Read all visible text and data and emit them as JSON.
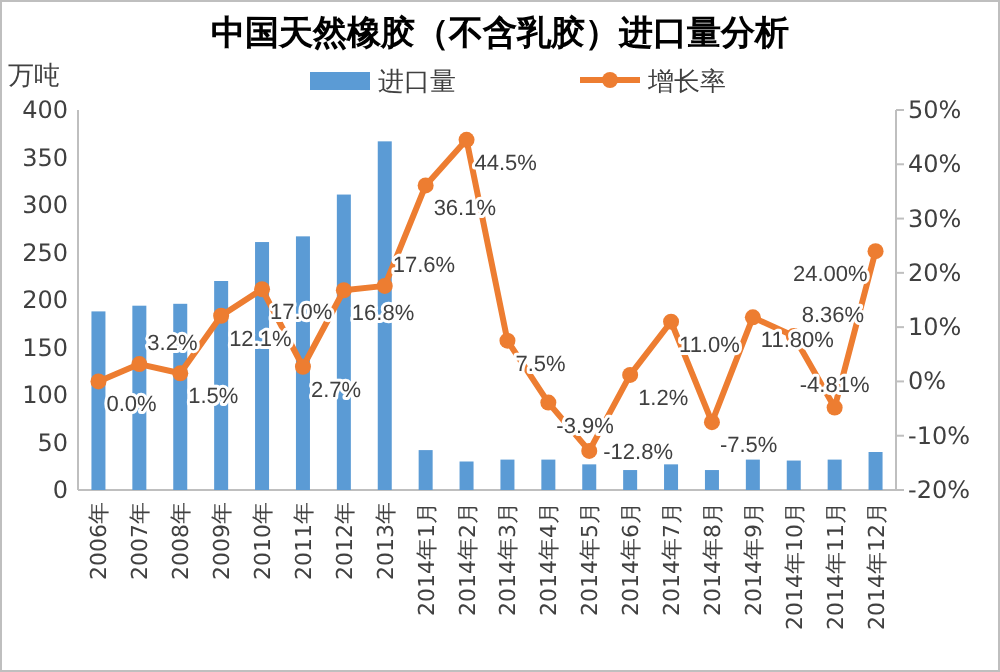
{
  "chart_data": {
    "type": "bar",
    "title": "中国天然橡胶（不含乳胶）进口量分析",
    "ylabel": "万吨",
    "legend": "top",
    "grid": false,
    "categories": [
      "2006年",
      "2007年",
      "2008年",
      "2009年",
      "2010年",
      "2011年",
      "2012年",
      "2013年",
      "2014年1月",
      "2014年2月",
      "2014年3月",
      "2014年4月",
      "2014年5月",
      "2014年6月",
      "2014年7月",
      "2014年8月",
      "2014年9月",
      "2014年10月",
      "2014年11月",
      "2014年12月"
    ],
    "series": [
      {
        "name": "进口量",
        "color": "#5b9bd5",
        "values": [
          188,
          194,
          196,
          220,
          261,
          267,
          311,
          367,
          42,
          30,
          32,
          32,
          27,
          21,
          27,
          21,
          32,
          31,
          32,
          40
        ]
      },
      {
        "name": "增长率",
        "type": "line",
        "axis": "y2",
        "color": "#ed7d31",
        "marker": "circle",
        "values": [
          0.0,
          3.2,
          1.5,
          12.1,
          17.0,
          2.7,
          16.8,
          17.6,
          36.1,
          44.5,
          7.5,
          -3.9,
          -12.8,
          1.2,
          11.0,
          -7.5,
          11.8,
          8.36,
          -4.81,
          24.0
        ],
        "value_labels": [
          "0.0%",
          "3.2%",
          "1.5%",
          "12.1%",
          "17.0%",
          "2.7%",
          "16.8%",
          "17.6%",
          "36.1%",
          "44.5%",
          "7.5%",
          "-3.9%",
          "-12.8%",
          "1.2%",
          "11.0%",
          "-7.5%",
          "11.80%",
          "8.36%",
          "-4.81%",
          "24.00%"
        ]
      }
    ],
    "ylim": [
      0,
      400
    ],
    "yticks": [
      0,
      50,
      100,
      150,
      200,
      250,
      300,
      350,
      400
    ],
    "y2lim": [
      -20,
      50
    ],
    "y2ticks": [
      {
        "value": -20,
        "label": "-20%"
      },
      {
        "value": -10,
        "label": "-10%"
      },
      {
        "value": 0,
        "label": "0%"
      },
      {
        "value": 10,
        "label": "10%"
      },
      {
        "value": 20,
        "label": "20%"
      },
      {
        "value": 30,
        "label": "30%"
      },
      {
        "value": 40,
        "label": "40%"
      },
      {
        "value": 50,
        "label": "50%"
      }
    ]
  }
}
